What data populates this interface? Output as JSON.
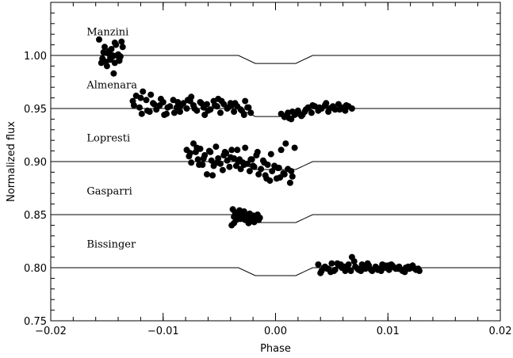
{
  "chart_data": {
    "type": "scatter",
    "xlabel": "Phase",
    "ylabel": "Normalized flux",
    "xlim": [
      -0.02,
      0.02
    ],
    "ylim": [
      0.75,
      1.05
    ],
    "x_ticks": [
      {
        "value": -0.02,
        "label": "−0.02"
      },
      {
        "value": -0.01,
        "label": "−0.01"
      },
      {
        "value": 0.0,
        "label": "0.00"
      },
      {
        "value": 0.01,
        "label": "0.01"
      },
      {
        "value": 0.02,
        "label": "0.02"
      }
    ],
    "y_ticks": [
      {
        "value": 0.75,
        "label": "0.75"
      },
      {
        "value": 0.8,
        "label": "0.80"
      },
      {
        "value": 0.85,
        "label": "0.85"
      },
      {
        "value": 0.9,
        "label": "0.90"
      },
      {
        "value": 0.95,
        "label": "0.95"
      },
      {
        "value": 1.0,
        "label": "1.00"
      }
    ],
    "transit_model": {
      "ingress_start": -0.0033,
      "full_start": -0.0018,
      "full_end": 0.0018,
      "egress_end": 0.0033,
      "depth": 0.0075
    },
    "series": [
      {
        "name": "Manzini",
        "baseline": 1.0,
        "label_phase": -0.0168,
        "label_flux": 1.022,
        "x": [
          -0.0157,
          -0.0155,
          -0.0152,
          -0.0149,
          -0.0147,
          -0.0145,
          -0.0143,
          -0.0141,
          -0.0139,
          -0.0137,
          -0.0154,
          -0.015,
          -0.0146,
          -0.0142,
          -0.0138,
          -0.0151,
          -0.0148,
          -0.0144,
          -0.014,
          -0.0136,
          -0.0153,
          -0.0147,
          -0.0143,
          -0.0139,
          -0.0145
        ],
        "y": [
          1.015,
          0.993,
          1.008,
          1.002,
          0.996,
          0.999,
          1.012,
          1.0,
          0.995,
          1.013,
          0.997,
          0.99,
          1.006,
          1.01,
          0.999,
          0.994,
          1.004,
          0.983,
          1.001,
          1.008,
          1.003,
          0.998,
          0.993,
          0.996,
          1.0
        ]
      },
      {
        "name": "Almenara",
        "baseline": 0.95,
        "label_phase": -0.0168,
        "label_flux": 0.972,
        "x": [
          -0.0127,
          -0.0124,
          -0.0121,
          -0.0118,
          -0.0115,
          -0.0112,
          -0.0109,
          -0.0106,
          -0.0103,
          -0.01,
          -0.0097,
          -0.0094,
          -0.0091,
          -0.0088,
          -0.0085,
          -0.0082,
          -0.0079,
          -0.0076,
          -0.0073,
          -0.007,
          -0.0067,
          -0.0064,
          -0.0061,
          -0.0058,
          -0.0055,
          -0.0052,
          -0.0049,
          -0.0046,
          -0.0043,
          -0.004,
          -0.0037,
          -0.0034,
          -0.0031,
          -0.0028,
          -0.0025,
          -0.0022,
          -0.0126,
          -0.012,
          -0.0114,
          -0.0108,
          -0.0102,
          -0.0096,
          -0.009,
          -0.0084,
          -0.0078,
          -0.0072,
          -0.0066,
          -0.006,
          -0.0054,
          -0.0048,
          -0.0042,
          -0.0036,
          -0.003,
          -0.0024,
          -0.0119,
          -0.0111,
          -0.0099,
          -0.0087,
          -0.0075,
          -0.0063,
          -0.0051,
          -0.0039,
          -0.0027,
          0.0005,
          0.0008,
          0.0011,
          0.0014,
          0.0017,
          0.002,
          0.0023,
          0.0026,
          0.0029,
          0.0032,
          0.0035,
          0.0038,
          0.0041,
          0.0044,
          0.0047,
          0.005,
          0.0053,
          0.0056,
          0.0059,
          0.0062,
          0.0065,
          0.0068,
          0.0009,
          0.0015,
          0.0021,
          0.0027,
          0.0033,
          0.0039,
          0.0045,
          0.0051,
          0.0057,
          0.0063,
          0.0012,
          0.0024,
          0.0048,
          0.006
        ],
        "y": [
          0.957,
          0.962,
          0.951,
          0.966,
          0.958,
          0.947,
          0.955,
          0.949,
          0.953,
          0.956,
          0.945,
          0.952,
          0.958,
          0.951,
          0.947,
          0.955,
          0.95,
          0.957,
          0.953,
          0.948,
          0.956,
          0.951,
          0.954,
          0.949,
          0.957,
          0.952,
          0.946,
          0.954,
          0.95,
          0.955,
          0.947,
          0.952,
          0.949,
          0.944,
          0.951,
          0.946,
          0.953,
          0.96,
          0.948,
          0.954,
          0.959,
          0.951,
          0.946,
          0.953,
          0.958,
          0.95,
          0.955,
          0.948,
          0.953,
          0.957,
          0.951,
          0.955,
          0.948,
          0.951,
          0.945,
          0.963,
          0.944,
          0.956,
          0.961,
          0.944,
          0.959,
          0.953,
          0.957,
          0.945,
          0.942,
          0.946,
          0.94,
          0.944,
          0.948,
          0.943,
          0.947,
          0.951,
          0.946,
          0.952,
          0.948,
          0.95,
          0.953,
          0.947,
          0.951,
          0.949,
          0.954,
          0.95,
          0.948,
          0.952,
          0.95,
          0.943,
          0.947,
          0.945,
          0.949,
          0.953,
          0.951,
          0.955,
          0.952,
          0.949,
          0.953,
          0.941,
          0.944,
          0.95,
          0.951
        ]
      },
      {
        "name": "Lopresti",
        "baseline": 0.9,
        "label_phase": -0.0168,
        "label_flux": 0.922,
        "x": [
          -0.0079,
          -0.0077,
          -0.0075,
          -0.0073,
          -0.0071,
          -0.0069,
          -0.0067,
          -0.0065,
          -0.0063,
          -0.0061,
          -0.0059,
          -0.0057,
          -0.0055,
          -0.0053,
          -0.0051,
          -0.0049,
          -0.0047,
          -0.0045,
          -0.0043,
          -0.0041,
          -0.0039,
          -0.0037,
          -0.0035,
          -0.0033,
          -0.0031,
          -0.0029,
          -0.0027,
          -0.0025,
          -0.0023,
          -0.0021,
          -0.0019,
          -0.0017,
          -0.0015,
          -0.0013,
          -0.0011,
          -0.0009,
          -0.0007,
          -0.0005,
          -0.0003,
          -0.0001,
          0.0001,
          0.0003,
          0.0005,
          0.0007,
          0.0009,
          0.0011,
          0.0013,
          0.0015,
          0.0017,
          -0.0076,
          -0.007,
          -0.0064,
          -0.0058,
          -0.0052,
          -0.0046,
          -0.004,
          -0.0034,
          -0.0028,
          -0.0022,
          -0.0016,
          -0.001,
          -0.0004,
          0.0002,
          0.0008,
          0.0014,
          -0.0068,
          -0.0056,
          -0.0044,
          -0.0032,
          -0.002,
          -0.0008,
          0.0004
        ],
        "y": [
          0.911,
          0.905,
          0.899,
          0.917,
          0.909,
          0.902,
          0.912,
          0.897,
          0.906,
          0.888,
          0.91,
          0.901,
          0.896,
          0.914,
          0.903,
          0.898,
          0.892,
          0.909,
          0.901,
          0.895,
          0.911,
          0.903,
          0.896,
          0.9,
          0.893,
          0.899,
          0.913,
          0.898,
          0.891,
          0.902,
          0.895,
          0.906,
          0.888,
          0.893,
          0.901,
          0.887,
          0.897,
          0.882,
          0.891,
          0.896,
          0.884,
          0.894,
          0.911,
          0.889,
          0.917,
          0.893,
          0.88,
          0.886,
          0.913,
          0.908,
          0.913,
          0.903,
          0.909,
          0.899,
          0.906,
          0.904,
          0.911,
          0.897,
          0.902,
          0.909,
          0.899,
          0.907,
          0.894,
          0.888,
          0.891,
          0.897,
          0.887,
          0.908,
          0.902,
          0.896,
          0.884,
          0.885
        ]
      },
      {
        "name": "Gasparri",
        "baseline": 0.85,
        "label_phase": -0.0168,
        "label_flux": 0.872,
        "x": [
          -0.0039,
          -0.0038,
          -0.0037,
          -0.0036,
          -0.0035,
          -0.0034,
          -0.0033,
          -0.0032,
          -0.0031,
          -0.003,
          -0.0029,
          -0.0028,
          -0.0027,
          -0.0026,
          -0.0025,
          -0.0024,
          -0.0023,
          -0.0022,
          -0.0021,
          -0.002,
          -0.0019,
          -0.0018,
          -0.0017,
          -0.0016,
          -0.0015,
          -0.0014,
          -0.0037,
          -0.0033,
          -0.0029,
          -0.0025,
          -0.0021,
          -0.0017
        ],
        "y": [
          0.84,
          0.855,
          0.848,
          0.852,
          0.845,
          0.851,
          0.849,
          0.854,
          0.846,
          0.852,
          0.849,
          0.853,
          0.845,
          0.85,
          0.848,
          0.842,
          0.851,
          0.845,
          0.847,
          0.849,
          0.843,
          0.848,
          0.846,
          0.85,
          0.845,
          0.847,
          0.842,
          0.846,
          0.852,
          0.849,
          0.844,
          0.849
        ]
      },
      {
        "name": "Bissinger",
        "baseline": 0.8,
        "label_phase": -0.0168,
        "label_flux": 0.822,
        "x": [
          0.0038,
          0.0041,
          0.0044,
          0.0047,
          0.005,
          0.0053,
          0.0056,
          0.0059,
          0.0062,
          0.0065,
          0.0068,
          0.0071,
          0.0074,
          0.0077,
          0.008,
          0.0083,
          0.0086,
          0.0089,
          0.0092,
          0.0095,
          0.0098,
          0.0101,
          0.0104,
          0.0107,
          0.011,
          0.0113,
          0.0116,
          0.0119,
          0.0122,
          0.0125,
          0.0128,
          0.004,
          0.0046,
          0.0052,
          0.0058,
          0.0064,
          0.007,
          0.0076,
          0.0082,
          0.0088,
          0.0094,
          0.01,
          0.0106,
          0.0112,
          0.0118,
          0.0124,
          0.0043,
          0.0055,
          0.0067,
          0.0079,
          0.0091,
          0.0103,
          0.0115,
          0.0127,
          0.0049,
          0.0061,
          0.0073,
          0.0085,
          0.0097,
          0.0109,
          0.0121
        ],
        "y": [
          0.803,
          0.797,
          0.801,
          0.799,
          0.804,
          0.798,
          0.802,
          0.8,
          0.797,
          0.803,
          0.81,
          0.801,
          0.798,
          0.803,
          0.799,
          0.802,
          0.797,
          0.801,
          0.799,
          0.803,
          0.8,
          0.798,
          0.802,
          0.799,
          0.801,
          0.797,
          0.8,
          0.799,
          0.802,
          0.798,
          0.797,
          0.795,
          0.799,
          0.797,
          0.803,
          0.799,
          0.806,
          0.797,
          0.804,
          0.799,
          0.797,
          0.802,
          0.8,
          0.798,
          0.801,
          0.799,
          0.8,
          0.804,
          0.797,
          0.801,
          0.798,
          0.803,
          0.796,
          0.799,
          0.796,
          0.801,
          0.799,
          0.798,
          0.802,
          0.799,
          0.8
        ]
      }
    ]
  }
}
